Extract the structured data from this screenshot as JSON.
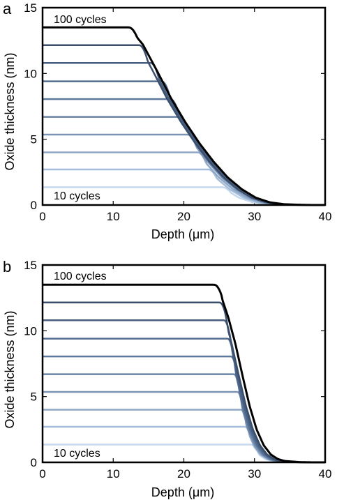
{
  "figure": {
    "panels": [
      {
        "letter": "a",
        "annotation_top": "100 cycles",
        "annotation_bottom": "10 cycles"
      },
      {
        "letter": "b",
        "annotation_top": "100 cycles",
        "annotation_bottom": "10 cycles"
      }
    ]
  },
  "chart_data": [
    {
      "type": "line",
      "panel": "a",
      "xlabel": "Depth (μm)",
      "ylabel": "Oxide thickness (nm)",
      "xlim": [
        0,
        40
      ],
      "ylim": [
        0,
        15
      ],
      "xticks": [
        0,
        10,
        20,
        30,
        40
      ],
      "yticks": [
        0,
        5,
        10,
        15
      ],
      "grid": false,
      "series": [
        {
          "cycles": 10,
          "plateau": 1.35,
          "knee": 25.5,
          "color": "#c3d8ee"
        },
        {
          "cycles": 20,
          "plateau": 2.7,
          "knee": 23.5,
          "color": "#a6bdd9"
        },
        {
          "cycles": 30,
          "plateau": 4.0,
          "knee": 22.0,
          "color": "#8ea7c6"
        },
        {
          "cycles": 40,
          "plateau": 5.35,
          "knee": 20.6,
          "color": "#7b94b6"
        },
        {
          "cycles": 50,
          "plateau": 6.7,
          "knee": 19.3,
          "color": "#6b85a8"
        },
        {
          "cycles": 60,
          "plateau": 8.05,
          "knee": 18.1,
          "color": "#5e789c"
        },
        {
          "cycles": 70,
          "plateau": 9.4,
          "knee": 16.9,
          "color": "#526b8f"
        },
        {
          "cycles": 80,
          "plateau": 10.8,
          "knee": 15.3,
          "color": "#465e80"
        },
        {
          "cycles": 90,
          "plateau": 12.15,
          "knee": 13.7,
          "color": "#3b4f6d"
        },
        {
          "cycles": 100,
          "plateau": 13.5,
          "knee": 12.2,
          "color": "#000000"
        }
      ],
      "profile_envelope": {
        "x": [
          12,
          14,
          16,
          18,
          20,
          22,
          24,
          26,
          28,
          30,
          32,
          34,
          36,
          38,
          40
        ],
        "y": [
          13.5,
          12.2,
          10.2,
          8.1,
          6.3,
          4.7,
          3.3,
          2.1,
          1.2,
          0.55,
          0.2,
          0.06,
          0.02,
          0.0,
          0.0
        ]
      }
    },
    {
      "type": "line",
      "panel": "b",
      "xlabel": "Depth (μm)",
      "ylabel": "Oxide thickness (nm)",
      "xlim": [
        0,
        40
      ],
      "ylim": [
        0,
        15
      ],
      "xticks": [
        0,
        10,
        20,
        30,
        40
      ],
      "yticks": [
        0,
        5,
        10,
        15
      ],
      "grid": false,
      "series": [
        {
          "cycles": 10,
          "plateau": 1.35,
          "knee": 29.5,
          "color": "#c3d8ee"
        },
        {
          "cycles": 20,
          "plateau": 2.7,
          "knee": 28.7,
          "color": "#a6bdd9"
        },
        {
          "cycles": 30,
          "plateau": 4.0,
          "knee": 28.1,
          "color": "#8ea7c6"
        },
        {
          "cycles": 40,
          "plateau": 5.35,
          "knee": 27.6,
          "color": "#7b94b6"
        },
        {
          "cycles": 50,
          "plateau": 6.7,
          "knee": 27.1,
          "color": "#6b85a8"
        },
        {
          "cycles": 60,
          "plateau": 8.05,
          "knee": 26.7,
          "color": "#5e789c"
        },
        {
          "cycles": 70,
          "plateau": 9.4,
          "knee": 26.2,
          "color": "#526b8f"
        },
        {
          "cycles": 80,
          "plateau": 10.8,
          "knee": 25.7,
          "color": "#465e80"
        },
        {
          "cycles": 90,
          "plateau": 12.15,
          "knee": 25.1,
          "color": "#3b4f6d"
        },
        {
          "cycles": 100,
          "plateau": 13.5,
          "knee": 24.3,
          "color": "#000000"
        }
      ],
      "profile_envelope": {
        "x": [
          24,
          25,
          26,
          27,
          28,
          29,
          30,
          31,
          32,
          33,
          34,
          36,
          38,
          40
        ],
        "y": [
          13.5,
          12.6,
          11.0,
          9.0,
          6.6,
          4.3,
          2.5,
          1.3,
          0.6,
          0.25,
          0.1,
          0.02,
          0.0,
          0.0
        ]
      }
    }
  ]
}
